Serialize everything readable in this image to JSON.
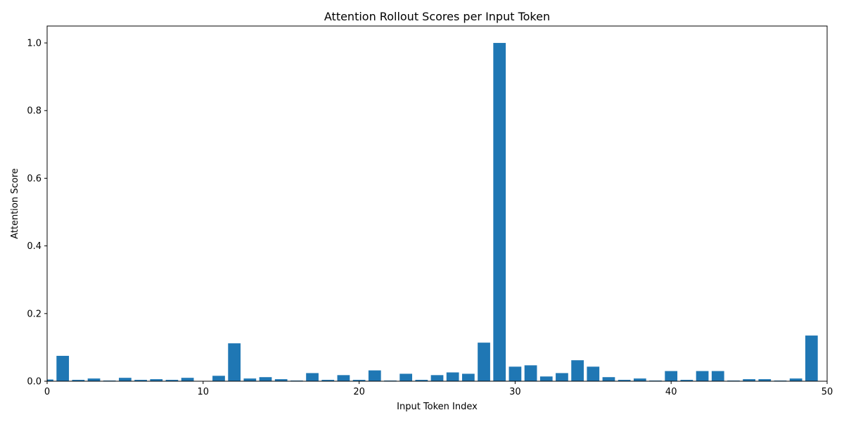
{
  "chart_data": {
    "type": "bar",
    "title": "Attention Rollout Scores per Input Token",
    "xlabel": "Input Token Index",
    "ylabel": "Attention Score",
    "xlim": [
      0,
      50
    ],
    "ylim": [
      0,
      1.05
    ],
    "x_ticks": [
      0,
      10,
      20,
      30,
      40,
      50
    ],
    "y_ticks": [
      0.0,
      0.2,
      0.4,
      0.6,
      0.8,
      1.0
    ],
    "x_tick_labels": [
      "0",
      "10",
      "20",
      "30",
      "40",
      "50"
    ],
    "y_tick_labels": [
      "0.0",
      "0.2",
      "0.4",
      "0.6",
      "0.8",
      "1.0"
    ],
    "grid": false,
    "bar_color": "#1f77b4",
    "categories": [
      0,
      1,
      2,
      3,
      4,
      5,
      6,
      7,
      8,
      9,
      10,
      11,
      12,
      13,
      14,
      15,
      16,
      17,
      18,
      19,
      20,
      21,
      22,
      23,
      24,
      25,
      26,
      27,
      28,
      29,
      30,
      31,
      32,
      33,
      34,
      35,
      36,
      37,
      38,
      39,
      40,
      41,
      42,
      43,
      44,
      45,
      46,
      47,
      48,
      49
    ],
    "values": [
      0.005,
      0.075,
      0.004,
      0.008,
      0.002,
      0.01,
      0.004,
      0.006,
      0.004,
      0.01,
      0.001,
      0.016,
      0.112,
      0.008,
      0.012,
      0.006,
      0.002,
      0.024,
      0.004,
      0.018,
      0.004,
      0.032,
      0.002,
      0.022,
      0.004,
      0.018,
      0.026,
      0.022,
      0.114,
      1.0,
      0.043,
      0.047,
      0.014,
      0.024,
      0.062,
      0.043,
      0.012,
      0.004,
      0.008,
      0.002,
      0.03,
      0.004,
      0.03,
      0.03,
      0.002,
      0.006,
      0.006,
      0.002,
      0.008,
      0.135
    ]
  }
}
